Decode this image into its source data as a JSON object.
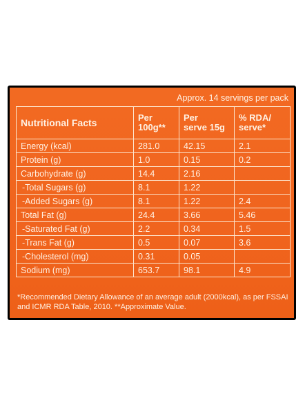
{
  "servings_note": "Approx. 14 servings per pack",
  "headers": {
    "nutrient": "Nutritional Facts",
    "per100_line1": "Per",
    "per100_line2": "100g**",
    "serve_line1": "Per",
    "serve_line2": "serve 15g",
    "rda_line1": "% RDA/",
    "rda_line2": "serve*"
  },
  "rows": [
    {
      "name": "Energy (kcal)",
      "per100": "281.0",
      "serve": "42.15",
      "rda": "2.1"
    },
    {
      "name": "Protein (g)",
      "per100": "1.0",
      "serve": "0.15",
      "rda": "0.2"
    },
    {
      "name": "Carbohydrate (g)",
      "per100": "14.4",
      "serve": "2.16",
      "rda": ""
    },
    {
      "name": "-Total Sugars (g)",
      "per100": "8.1",
      "serve": "1.22",
      "rda": ""
    },
    {
      "name": "-Added Sugars (g)",
      "per100": "8.1",
      "serve": "1.22",
      "rda": "2.4"
    },
    {
      "name": "Total Fat (g)",
      "per100": "24.4",
      "serve": "3.66",
      "rda": "5.46"
    },
    {
      "name": "-Saturated Fat (g)",
      "per100": "2.2",
      "serve": "0.34",
      "rda": "1.5"
    },
    {
      "name": "-Trans Fat (g)",
      "per100": "0.5",
      "serve": "0.07",
      "rda": "3.6"
    },
    {
      "name": "-Cholesterol (mg)",
      "per100": "0.31",
      "serve": "0.05",
      "rda": ""
    },
    {
      "name": "Sodium (mg)",
      "per100": "653.7",
      "serve": "98.1",
      "rda": "4.9"
    }
  ],
  "footnote": "*Recommended Dietary Allowance of an average adult (2000kcal), as per FSSAI and ICMR RDA Table, 2010. **Approximate Value."
}
